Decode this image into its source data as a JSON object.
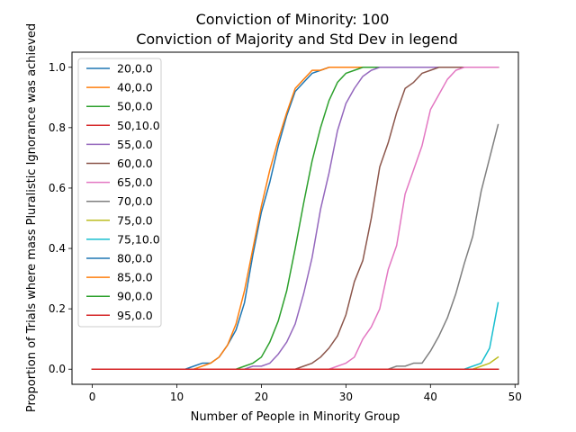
{
  "chart_data": {
    "type": "line",
    "title": "Conviction of Minority: 100",
    "subtitle": "Conviction of Majority and Std Dev in legend",
    "xlabel": "Number of People in Minority Group",
    "ylabel": "Proportion of Trials where mass Pluralistic Ignorance was achieved",
    "xlim": [
      -2.4,
      50.4
    ],
    "ylim": [
      -0.05,
      1.05
    ],
    "xticks": [
      0,
      10,
      20,
      30,
      40,
      50
    ],
    "xtick_labels": [
      "0",
      "10",
      "20",
      "30",
      "40",
      "50"
    ],
    "yticks": [
      0.0,
      0.2,
      0.4,
      0.6,
      0.8,
      1.0
    ],
    "ytick_labels": [
      "0.0",
      "0.2",
      "0.4",
      "0.6",
      "0.8",
      "1.0"
    ],
    "grid": false,
    "legend_position": "top-left",
    "x": [
      0,
      1,
      2,
      3,
      4,
      5,
      6,
      7,
      8,
      9,
      10,
      11,
      12,
      13,
      14,
      15,
      16,
      17,
      18,
      19,
      20,
      21,
      22,
      23,
      24,
      25,
      26,
      27,
      28,
      29,
      30,
      31,
      32,
      33,
      34,
      35,
      36,
      37,
      38,
      39,
      40,
      41,
      42,
      43,
      44,
      45,
      46,
      47,
      48
    ],
    "series": [
      {
        "name": "20,0.0",
        "color": "#1f77b4",
        "values": [
          0,
          0,
          0,
          0,
          0,
          0,
          0,
          0,
          0,
          0,
          0,
          0,
          0.01,
          0.02,
          0.02,
          0.04,
          0.08,
          0.13,
          0.22,
          0.38,
          0.52,
          0.62,
          0.74,
          0.84,
          0.92,
          0.95,
          0.98,
          0.99,
          1,
          1,
          1,
          1,
          1,
          1,
          1,
          1,
          1,
          1,
          1,
          1,
          1,
          1,
          1,
          1,
          1,
          1,
          1,
          1,
          1
        ]
      },
      {
        "name": "40,0.0",
        "color": "#ff7f0e",
        "values": [
          0,
          0,
          0,
          0,
          0,
          0,
          0,
          0,
          0,
          0,
          0,
          0,
          0,
          0.01,
          0.02,
          0.04,
          0.08,
          0.15,
          0.26,
          0.4,
          0.54,
          0.66,
          0.76,
          0.85,
          0.93,
          0.96,
          0.99,
          0.99,
          1,
          1,
          1,
          1,
          1,
          1,
          1,
          1,
          1,
          1,
          1,
          1,
          1,
          1,
          1,
          1,
          1,
          1,
          1,
          1,
          1
        ]
      },
      {
        "name": "50,0.0",
        "color": "#2ca02c",
        "values": [
          0,
          0,
          0,
          0,
          0,
          0,
          0,
          0,
          0,
          0,
          0,
          0,
          0,
          0,
          0,
          0,
          0,
          0,
          0.01,
          0.02,
          0.04,
          0.09,
          0.16,
          0.26,
          0.4,
          0.55,
          0.69,
          0.8,
          0.89,
          0.95,
          0.98,
          0.99,
          1,
          1,
          1,
          1,
          1,
          1,
          1,
          1,
          1,
          1,
          1,
          1,
          1,
          1,
          1,
          1,
          1
        ]
      },
      {
        "name": "50,10.0",
        "color": "#d62728",
        "values": [
          0,
          0,
          0,
          0,
          0,
          0,
          0,
          0,
          0,
          0,
          0,
          0,
          0,
          0,
          0,
          0,
          0,
          0,
          0,
          0,
          0,
          0,
          0,
          0,
          0,
          0,
          0,
          0,
          0,
          0,
          0,
          0,
          0,
          0,
          0,
          0,
          0,
          0,
          0,
          0,
          0,
          0,
          0,
          0,
          0,
          0,
          0,
          0,
          0
        ]
      },
      {
        "name": "55,0.0",
        "color": "#9467bd",
        "values": [
          0,
          0,
          0,
          0,
          0,
          0,
          0,
          0,
          0,
          0,
          0,
          0,
          0,
          0,
          0,
          0,
          0,
          0,
          0,
          0.01,
          0.01,
          0.02,
          0.05,
          0.09,
          0.15,
          0.25,
          0.37,
          0.53,
          0.65,
          0.79,
          0.88,
          0.93,
          0.97,
          0.99,
          1,
          1,
          1,
          1,
          1,
          1,
          1,
          1,
          1,
          1,
          1,
          1,
          1,
          1,
          1
        ]
      },
      {
        "name": "60,0.0",
        "color": "#8c564b",
        "values": [
          0,
          0,
          0,
          0,
          0,
          0,
          0,
          0,
          0,
          0,
          0,
          0,
          0,
          0,
          0,
          0,
          0,
          0,
          0,
          0,
          0,
          0,
          0,
          0,
          0,
          0.01,
          0.02,
          0.04,
          0.07,
          0.11,
          0.18,
          0.29,
          0.36,
          0.5,
          0.67,
          0.75,
          0.85,
          0.93,
          0.95,
          0.98,
          0.99,
          1,
          1,
          1,
          1,
          1,
          1,
          1,
          1
        ]
      },
      {
        "name": "65,0.0",
        "color": "#e377c2",
        "values": [
          0,
          0,
          0,
          0,
          0,
          0,
          0,
          0,
          0,
          0,
          0,
          0,
          0,
          0,
          0,
          0,
          0,
          0,
          0,
          0,
          0,
          0,
          0,
          0,
          0,
          0,
          0,
          0,
          0,
          0.01,
          0.02,
          0.04,
          0.1,
          0.14,
          0.2,
          0.33,
          0.41,
          0.58,
          0.66,
          0.74,
          0.86,
          0.91,
          0.96,
          0.99,
          1,
          1,
          1,
          1,
          1
        ]
      },
      {
        "name": "70,0.0",
        "color": "#7f7f7f",
        "values": [
          0,
          0,
          0,
          0,
          0,
          0,
          0,
          0,
          0,
          0,
          0,
          0,
          0,
          0,
          0,
          0,
          0,
          0,
          0,
          0,
          0,
          0,
          0,
          0,
          0,
          0,
          0,
          0,
          0,
          0,
          0,
          0,
          0,
          0,
          0,
          0,
          0.01,
          0.01,
          0.02,
          0.02,
          0.06,
          0.11,
          0.17,
          0.25,
          0.35,
          0.44,
          0.59,
          0.7,
          0.81
        ]
      },
      {
        "name": "75,0.0",
        "color": "#bcbd22",
        "values": [
          0,
          0,
          0,
          0,
          0,
          0,
          0,
          0,
          0,
          0,
          0,
          0,
          0,
          0,
          0,
          0,
          0,
          0,
          0,
          0,
          0,
          0,
          0,
          0,
          0,
          0,
          0,
          0,
          0,
          0,
          0,
          0,
          0,
          0,
          0,
          0,
          0,
          0,
          0,
          0,
          0,
          0,
          0,
          0,
          0,
          0,
          0.01,
          0.02,
          0.04
        ]
      },
      {
        "name": "75,10.0",
        "color": "#17becf",
        "values": [
          0,
          0,
          0,
          0,
          0,
          0,
          0,
          0,
          0,
          0,
          0,
          0,
          0,
          0,
          0,
          0,
          0,
          0,
          0,
          0,
          0,
          0,
          0,
          0,
          0,
          0,
          0,
          0,
          0,
          0,
          0,
          0,
          0,
          0,
          0,
          0,
          0,
          0,
          0,
          0,
          0,
          0,
          0,
          0,
          0,
          0.01,
          0.02,
          0.07,
          0.22
        ]
      },
      {
        "name": "80,0.0",
        "color": "#1f77b4",
        "values": [
          0,
          0,
          0,
          0,
          0,
          0,
          0,
          0,
          0,
          0,
          0,
          0,
          0,
          0,
          0,
          0,
          0,
          0,
          0,
          0,
          0,
          0,
          0,
          0,
          0,
          0,
          0,
          0,
          0,
          0,
          0,
          0,
          0,
          0,
          0,
          0,
          0,
          0,
          0,
          0,
          0,
          0,
          0,
          0,
          0,
          0,
          0,
          0,
          0
        ]
      },
      {
        "name": "85,0.0",
        "color": "#ff7f0e",
        "values": [
          0,
          0,
          0,
          0,
          0,
          0,
          0,
          0,
          0,
          0,
          0,
          0,
          0,
          0,
          0,
          0,
          0,
          0,
          0,
          0,
          0,
          0,
          0,
          0,
          0,
          0,
          0,
          0,
          0,
          0,
          0,
          0,
          0,
          0,
          0,
          0,
          0,
          0,
          0,
          0,
          0,
          0,
          0,
          0,
          0,
          0,
          0,
          0,
          0
        ]
      },
      {
        "name": "90,0.0",
        "color": "#2ca02c",
        "values": [
          0,
          0,
          0,
          0,
          0,
          0,
          0,
          0,
          0,
          0,
          0,
          0,
          0,
          0,
          0,
          0,
          0,
          0,
          0,
          0,
          0,
          0,
          0,
          0,
          0,
          0,
          0,
          0,
          0,
          0,
          0,
          0,
          0,
          0,
          0,
          0,
          0,
          0,
          0,
          0,
          0,
          0,
          0,
          0,
          0,
          0,
          0,
          0,
          0
        ]
      },
      {
        "name": "95,0.0",
        "color": "#d62728",
        "values": [
          0,
          0,
          0,
          0,
          0,
          0,
          0,
          0,
          0,
          0,
          0,
          0,
          0,
          0,
          0,
          0,
          0,
          0,
          0,
          0,
          0,
          0,
          0,
          0,
          0,
          0,
          0,
          0,
          0,
          0,
          0,
          0,
          0,
          0,
          0,
          0,
          0,
          0,
          0,
          0,
          0,
          0,
          0,
          0,
          0,
          0,
          0,
          0,
          0
        ]
      }
    ]
  }
}
